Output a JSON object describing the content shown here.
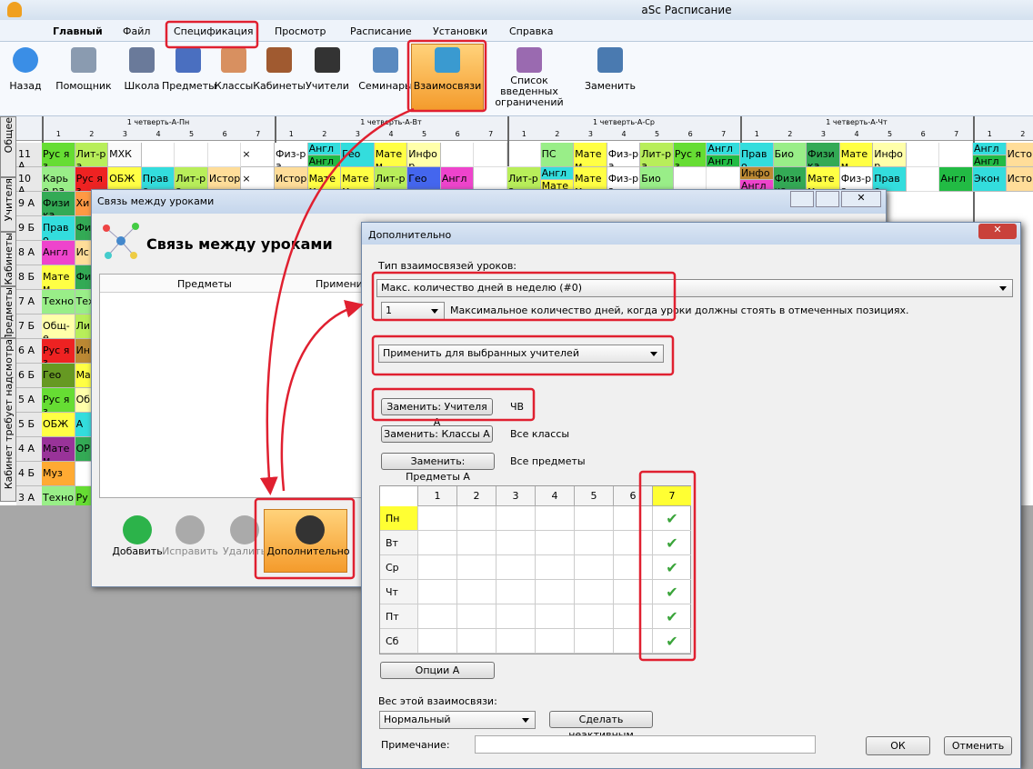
{
  "app": {
    "title": "aSc Расписание",
    "tabs": [
      "Главный",
      "Файл",
      "Спецификация",
      "Просмотр",
      "Расписание",
      "Установки",
      "Справка"
    ],
    "toolbar": [
      "Назад",
      "Помощник",
      "Школа",
      "Предметы",
      "Классы",
      "Кабинеты",
      "Учители",
      "Семинары",
      "Взаимосвязи",
      "Список введенных ограничений",
      "Заменить"
    ]
  },
  "side_tabs": [
    "Общее",
    "Учителя",
    "Кабинеты",
    "Предметы",
    "Кабинет требует надсмотра"
  ],
  "schedule": {
    "days": [
      "1 четверть-А-Пн",
      "1 четверть-А-Вт",
      "1 четверть-А-Ср",
      "1 четверть-А-Чт"
    ],
    "periods": [
      "1",
      "2",
      "3",
      "4",
      "5",
      "6",
      "7"
    ],
    "rows": [
      {
        "class": "11 А",
        "cells": [
          [
            {
              "text": "Рус яз",
              "color": "#66dd33"
            }
          ],
          [
            {
              "text": "Лит-ра",
              "color": "#b8ee5a"
            }
          ],
          [
            {
              "text": "МХК",
              "color": "#fafafa"
            }
          ],
          null,
          null,
          null,
          [
            {
              "text": "×",
              "color": "#ffffff"
            }
          ],
          [
            {
              "text": "Физ-ра",
              "color": "#ffffff"
            }
          ],
          [
            {
              "text": "Англ",
              "color": "#33dddd"
            },
            {
              "text": "Англ",
              "color": "#22bb44"
            }
          ],
          [
            {
              "text": "Гео",
              "color": "#33dddd"
            }
          ],
          [
            {
              "text": "Матем",
              "color": "#ffff44"
            }
          ],
          [
            {
              "text": "Инфор",
              "color": "#ffffaa"
            }
          ],
          null,
          null,
          null,
          [
            {
              "text": "ПС",
              "color": "#99ee88"
            }
          ],
          [
            {
              "text": "Матем",
              "color": "#ffff44"
            }
          ],
          [
            {
              "text": "Физ-ра",
              "color": "#ffffff"
            }
          ],
          [
            {
              "text": "Лит-ра",
              "color": "#b8ee5a"
            }
          ],
          [
            {
              "text": "Рус яз",
              "color": "#66dd33"
            }
          ],
          [
            {
              "text": "Англ",
              "color": "#33dddd"
            },
            {
              "text": "Англ",
              "color": "#22bb44"
            }
          ],
          [
            {
              "text": "Право",
              "color": "#33dddd"
            }
          ],
          [
            {
              "text": "Био",
              "color": "#99ee88"
            }
          ],
          [
            {
              "text": "Физика",
              "color": "#33aa55"
            }
          ],
          [
            {
              "text": "Матем",
              "color": "#ffff44"
            }
          ],
          [
            {
              "text": "Инфор",
              "color": "#ffffaa"
            }
          ],
          null,
          null,
          [
            {
              "text": "Англ",
              "color": "#33dddd"
            },
            {
              "text": "Англ",
              "color": "#22bb44"
            }
          ],
          [
            {
              "text": "Истор",
              "color": "#ffdd99"
            }
          ]
        ]
      },
      {
        "class": "10 А",
        "cells": [
          [
            {
              "text": "Карье ра",
              "color": "#99ee88"
            }
          ],
          [
            {
              "text": "Рус яз",
              "color": "#ee2222"
            }
          ],
          [
            {
              "text": "ОБЖ",
              "color": "#ffff44"
            }
          ],
          [
            {
              "text": "Право",
              "color": "#33dddd"
            }
          ],
          [
            {
              "text": "Лит-ра",
              "color": "#b8ee5a"
            }
          ],
          [
            {
              "text": "Истор",
              "color": "#ffdd99"
            }
          ],
          [
            {
              "text": "×",
              "color": "#ffffff"
            }
          ],
          [
            {
              "text": "Истор",
              "color": "#ffdd99"
            }
          ],
          [
            {
              "text": "Матем",
              "color": "#ffff44"
            }
          ],
          [
            {
              "text": "Матем",
              "color": "#ffff44"
            }
          ],
          [
            {
              "text": "Лит-ра",
              "color": "#b8ee5a"
            }
          ],
          [
            {
              "text": "Гео",
              "color": "#4466ee"
            }
          ],
          [
            {
              "text": "Англ",
              "color": "#ee44cc"
            }
          ],
          null,
          [
            {
              "text": "Лит-ра",
              "color": "#b8ee5a"
            }
          ],
          [
            {
              "text": "Англ",
              "color": "#33dddd"
            },
            {
              "text": "Матем",
              "color": "#ffff44"
            }
          ],
          [
            {
              "text": "Матем",
              "color": "#ffff44"
            }
          ],
          [
            {
              "text": "Физ-ра",
              "color": "#ffffff"
            }
          ],
          [
            {
              "text": "Био",
              "color": "#99ee88"
            }
          ],
          null,
          null,
          [
            {
              "text": "Инфор",
              "color": "#bb8833"
            },
            {
              "text": "Англ",
              "color": "#ee44cc"
            }
          ],
          [
            {
              "text": "Физика",
              "color": "#33aa55"
            }
          ],
          [
            {
              "text": "Матем",
              "color": "#ffff44"
            }
          ],
          [
            {
              "text": "Физ-ра",
              "color": "#ffffff"
            }
          ],
          [
            {
              "text": "Право",
              "color": "#33dddd"
            }
          ],
          null,
          [
            {
              "text": "Англ",
              "color": "#22bb44"
            }
          ],
          [
            {
              "text": "Экон",
              "color": "#33dddd"
            }
          ],
          [
            {
              "text": "Истор",
              "color": "#ffdd99"
            }
          ]
        ]
      },
      {
        "class": "9 А",
        "cells": [
          [
            {
              "text": "Физика",
              "color": "#33aa55"
            }
          ],
          [
            {
              "text": "Хи",
              "color": "#ff9944"
            }
          ]
        ]
      },
      {
        "class": "9 Б",
        "cells": [
          [
            {
              "text": "Право",
              "color": "#33dddd"
            }
          ],
          [
            {
              "text": "Фи",
              "color": "#33aa55"
            }
          ]
        ]
      },
      {
        "class": "8 А",
        "cells": [
          [
            {
              "text": "Англ",
              "color": "#ee44cc"
            }
          ],
          [
            {
              "text": "Ис",
              "color": "#ffdd99"
            }
          ]
        ]
      },
      {
        "class": "8 Б",
        "cells": [
          [
            {
              "text": "Матем",
              "color": "#ffff44"
            }
          ],
          [
            {
              "text": "Фи",
              "color": "#33aa55"
            }
          ]
        ]
      },
      {
        "class": "7 А",
        "cells": [
          [
            {
              "text": "Техно",
              "color": "#99ee88"
            }
          ],
          [
            {
              "text": "Техно",
              "color": "#99ee88"
            }
          ]
        ]
      },
      {
        "class": "7 Б",
        "cells": [
          [
            {
              "text": "Общ-е",
              "color": "#ffffaa"
            }
          ],
          [
            {
              "text": "Ли",
              "color": "#b8ee5a"
            }
          ]
        ]
      },
      {
        "class": "6 А",
        "cells": [
          [
            {
              "text": "Рус яз",
              "color": "#ee2222"
            }
          ],
          [
            {
              "text": "Ин",
              "color": "#bb8833"
            }
          ]
        ]
      },
      {
        "class": "6 Б",
        "cells": [
          [
            {
              "text": "Гео",
              "color": "#669922"
            }
          ],
          [
            {
              "text": "Ма",
              "color": "#ffff44"
            }
          ]
        ]
      },
      {
        "class": "5 А",
        "cells": [
          [
            {
              "text": "Рус яз",
              "color": "#66dd33"
            }
          ],
          [
            {
              "text": "Об",
              "color": "#ffffaa"
            }
          ]
        ]
      },
      {
        "class": "5 Б",
        "cells": [
          [
            {
              "text": "ОБЖ",
              "color": "#ffff44"
            }
          ],
          [
            {
              "text": "А",
              "color": "#33dddd"
            }
          ]
        ]
      },
      {
        "class": "4 А",
        "cells": [
          [
            {
              "text": "Матем",
              "color": "#993399"
            }
          ],
          [
            {
              "text": "ОР",
              "color": "#33aa55"
            }
          ]
        ]
      },
      {
        "class": "4 Б",
        "cells": [
          [
            {
              "text": "Муз",
              "color": "#ffaa33"
            }
          ],
          null
        ]
      },
      {
        "class": "3 А",
        "cells": [
          [
            {
              "text": "Техно",
              "color": "#99ee88"
            }
          ],
          [
            {
              "text": "Ру",
              "color": "#66dd33"
            }
          ]
        ]
      }
    ]
  },
  "dialog_links": {
    "title": "Связь между уроками",
    "heading": "Связь между уроками",
    "columns": [
      "Предметы",
      "Примени"
    ],
    "buttons": [
      "Добавить",
      "Исправить",
      "Удалить",
      "Дополнительно"
    ]
  },
  "dialog_more": {
    "title": "Дополнительно",
    "type_label": "Тип взаимосвязей уроков:",
    "type_value": "Макс. количество дней в неделю (#0)",
    "count_value": "1",
    "count_text": "Максимальное количество дней, когда уроки должны стоять в отмеченных позициях.",
    "apply_value": "Применить для выбранных учителей",
    "replace": [
      {
        "button": "Заменить: Учителя А",
        "value": "ЧВ"
      },
      {
        "button": "Заменить: Классы А",
        "value": "Все классы"
      },
      {
        "button": "Заменить: Предметы А",
        "value": "Все предметы"
      }
    ],
    "grid": {
      "periods": [
        "1",
        "2",
        "3",
        "4",
        "5",
        "6",
        "7"
      ],
      "days": [
        "Пн",
        "Вт",
        "Ср",
        "Чт",
        "Пт",
        "Сб"
      ],
      "checked": [
        [
          false,
          false,
          false,
          false,
          false,
          false,
          true
        ],
        [
          false,
          false,
          false,
          false,
          false,
          false,
          true
        ],
        [
          false,
          false,
          false,
          false,
          false,
          false,
          true
        ],
        [
          false,
          false,
          false,
          false,
          false,
          false,
          true
        ],
        [
          false,
          false,
          false,
          false,
          false,
          false,
          true
        ],
        [
          false,
          false,
          false,
          false,
          false,
          false,
          true
        ]
      ]
    },
    "options_button": "Опции А",
    "weight_label": "Вес этой взаимосвязи:",
    "weight_value": "Нормальный",
    "deactivate_button": "Сделать неактивным",
    "note_label": "Примечание:",
    "ok": "ОК",
    "cancel": "Отменить"
  }
}
